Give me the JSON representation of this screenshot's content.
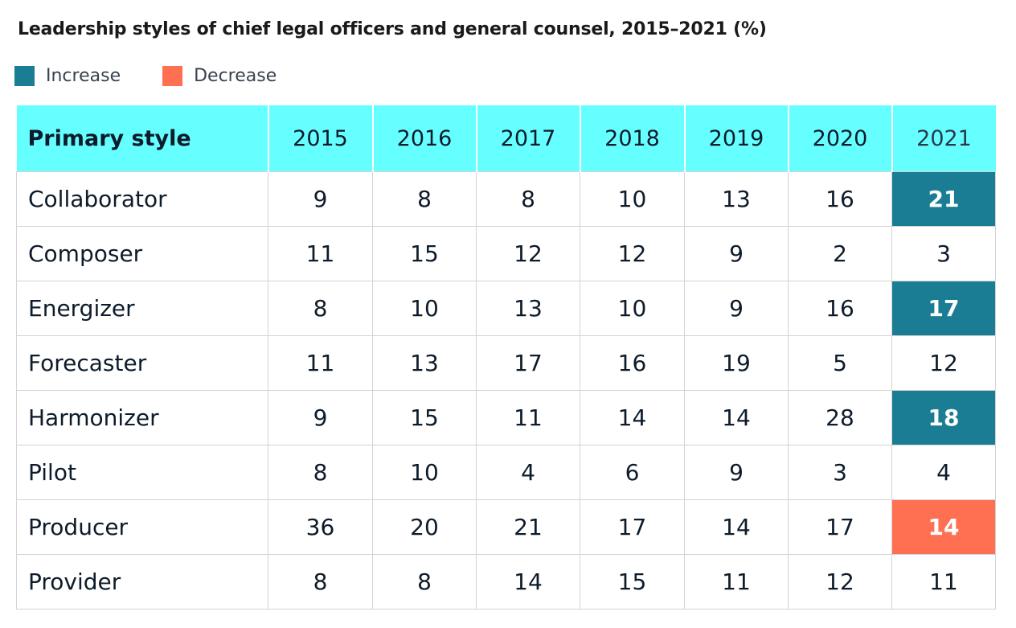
{
  "chart_data": {
    "type": "table",
    "title": "Leadership styles of chief legal officers and general counsel, 2015–2021 (%)",
    "legend": [
      {
        "label": "Increase",
        "color": "#1a7d94"
      },
      {
        "label": "Decrease",
        "color": "#ff6f52"
      }
    ],
    "header_color": "#66ffff",
    "columns": [
      "Primary style",
      "2015",
      "2016",
      "2017",
      "2018",
      "2019",
      "2020",
      "2021"
    ],
    "rows": [
      {
        "style": "Collaborator",
        "values": [
          9,
          8,
          8,
          10,
          13,
          16,
          21
        ],
        "highlight": "increase"
      },
      {
        "style": "Composer",
        "values": [
          11,
          15,
          12,
          12,
          9,
          2,
          3
        ],
        "highlight": ""
      },
      {
        "style": "Energizer",
        "values": [
          8,
          10,
          13,
          10,
          9,
          16,
          17
        ],
        "highlight": "increase"
      },
      {
        "style": "Forecaster",
        "values": [
          11,
          13,
          17,
          16,
          19,
          5,
          12
        ],
        "highlight": ""
      },
      {
        "style": "Harmonizer",
        "values": [
          9,
          15,
          11,
          14,
          14,
          28,
          18
        ],
        "highlight": "increase"
      },
      {
        "style": "Pilot",
        "values": [
          8,
          10,
          4,
          6,
          9,
          3,
          4
        ],
        "highlight": ""
      },
      {
        "style": "Producer",
        "values": [
          36,
          20,
          21,
          17,
          14,
          17,
          14
        ],
        "highlight": "decrease"
      },
      {
        "style": "Provider",
        "values": [
          8,
          8,
          14,
          15,
          11,
          12,
          11
        ],
        "highlight": ""
      }
    ]
  }
}
